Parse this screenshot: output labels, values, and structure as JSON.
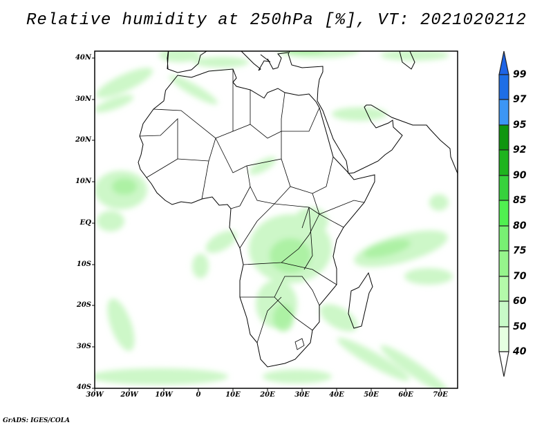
{
  "title": "Relative humidity at 250hPa [%], VT: 2021020212",
  "credit": "GrADS: IGES/COLA",
  "chart_data": {
    "type": "heatmap",
    "variable": "Relative humidity at 250hPa",
    "units": "%",
    "valid_time": "2021020212",
    "lon_range": [
      -30,
      75
    ],
    "lat_range": [
      -40,
      42
    ],
    "x_ticks": [
      "30W",
      "20W",
      "10W",
      "0",
      "10E",
      "20E",
      "30E",
      "40E",
      "50E",
      "60E",
      "70E"
    ],
    "y_ticks": [
      "40N",
      "30N",
      "20N",
      "10N",
      "EQ",
      "10S",
      "20S",
      "30S",
      "40S"
    ],
    "colorbar": {
      "levels": [
        "99",
        "97",
        "95",
        "92",
        "90",
        "85",
        "80",
        "75",
        "70",
        "60",
        "50",
        "40"
      ],
      "colors": [
        "#1e64e6",
        "#1e6ee6",
        "#3c96f5",
        "#0f960f",
        "#1eb41e",
        "#37d23c",
        "#50f050",
        "#78f073",
        "#96f58c",
        "#b4faaa",
        "#c8fac8",
        "#e6ffe1",
        "#ffffff"
      ]
    }
  }
}
